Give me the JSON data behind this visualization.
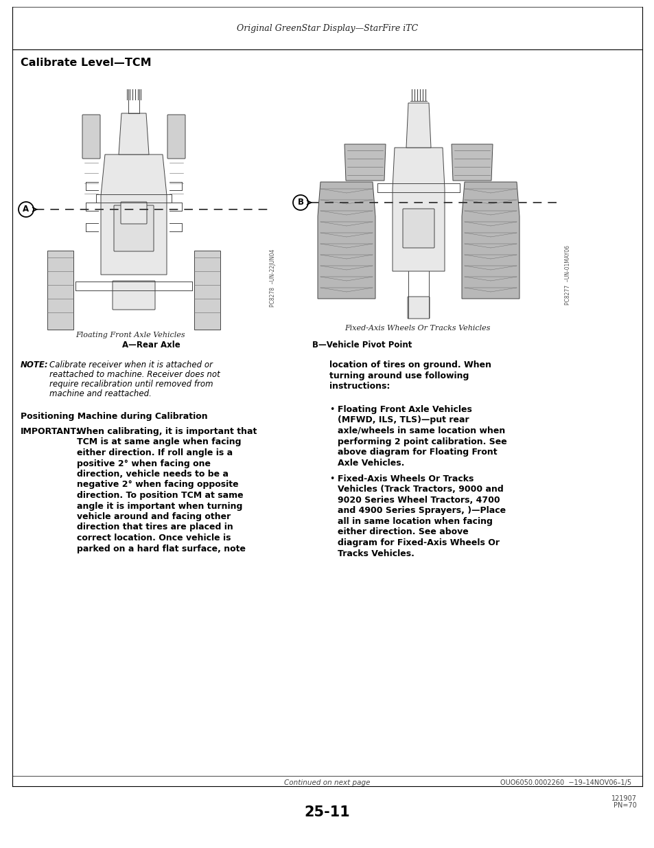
{
  "page_bg": "#ffffff",
  "header_text": "Original GreenStar Display—StarFire iTC",
  "title": "Calibrate Level—TCM",
  "caption_left": "Floating Front Axle Vehicles",
  "caption_right": "Fixed-Axis Wheels Or Tracks Vehicles",
  "label_A": "A—Rear Axle",
  "label_B": "B—Vehicle Pivot Point",
  "note_label": "NOTE:",
  "note_text_line1": "Calibrate receiver when it is attached or",
  "note_text_line2": "reattached to machine. Receiver does not",
  "note_text_line3": "require recalibration until removed from",
  "note_text_line4": "machine and reattached.",
  "positioning_header": "Positioning Machine during Calibration",
  "important_label": "IMPORTANT:",
  "important_lines": [
    "When calibrating, it is important that",
    "TCM is at same angle when facing",
    "either direction. If roll angle is a",
    "positive 2° when facing one",
    "direction, vehicle needs to be a",
    "negative 2° when facing opposite",
    "direction. To position TCM at same",
    "angle it is important when turning",
    "vehicle around and facing other",
    "direction that tires are placed in",
    "correct location. Once vehicle is",
    "parked on a hard flat surface, note"
  ],
  "right_col_lines": [
    "location of tires on ground. When",
    "turning around use following",
    "instructions:"
  ],
  "bullet1_lines": [
    "Floating Front Axle Vehicles",
    "(MFWD, ILS, TLS)—put rear",
    "axle/wheels in same location when",
    "performing 2 point calibration. See",
    "above diagram for Floating Front",
    "Axle Vehicles."
  ],
  "bullet2_lines": [
    "Fixed-Axis Wheels Or Tracks",
    "Vehicles (Track Tractors, 9000 and",
    "9020 Series Wheel Tractors, 4700",
    "and 4900 Series Sprayers, )—Place",
    "all in same location when facing",
    "either direction. See above",
    "diagram for Fixed-Axis Wheels Or",
    "Tracks Vehicles."
  ],
  "footer_center": "Continued on next page",
  "footer_ref": "OUO6050.0002260  −19–14NOV06–1/5",
  "page_number": "25-11",
  "pn_line1": "121907",
  "pn_line2": "PN=70",
  "sidebar_left": "PC8278  –UN-22JUN04",
  "sidebar_right": "PC8277  –UN-01MAY06"
}
